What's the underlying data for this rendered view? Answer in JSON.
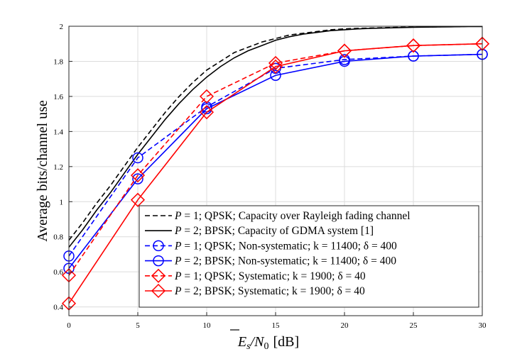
{
  "chart_data": {
    "type": "line",
    "xlabel_main": "E",
    "xlabel_sub": "s",
    "xlabel_mid": "/N",
    "xlabel_sub2": "0",
    "xlabel_unit": "[dB]",
    "ylabel": "Average bits/channel use",
    "xlim": [
      0,
      30
    ],
    "ylim": [
      0.35,
      2.0
    ],
    "xticks": [
      0,
      5,
      10,
      15,
      20,
      25,
      30
    ],
    "yticks": [
      0.4,
      0.6,
      0.8,
      1.0,
      1.2,
      1.4,
      1.6,
      1.8,
      2.0
    ],
    "ytick_labels": [
      "0.4",
      "0.6",
      "0.8",
      "1",
      "1.2",
      "1.4",
      "1.6",
      "1.8",
      "2"
    ],
    "grid": true,
    "legend_position": "bottom-right",
    "series": [
      {
        "name_prefix": "P",
        "name": " = 1; QPSK; Capacity over Rayleigh fading channel",
        "color": "#000000",
        "dash": "dashed",
        "marker": "none",
        "x": [
          0,
          1,
          2,
          3,
          4,
          5,
          6,
          7,
          8,
          9,
          10,
          11,
          12,
          13,
          14,
          15,
          16,
          17,
          18,
          19,
          20,
          21,
          22,
          23,
          24,
          25,
          26,
          27,
          28,
          29,
          30
        ],
        "y": [
          0.78,
          0.88,
          0.99,
          1.09,
          1.2,
          1.31,
          1.41,
          1.51,
          1.6,
          1.68,
          1.75,
          1.8,
          1.85,
          1.88,
          1.91,
          1.93,
          1.95,
          1.96,
          1.97,
          1.98,
          1.985,
          1.988,
          1.99,
          1.992,
          1.994,
          1.995,
          1.996,
          1.997,
          1.998,
          1.999,
          1.999
        ]
      },
      {
        "name_prefix": "P",
        "name": " = 2; BPSK; Capacity of GDMA system [1]",
        "color": "#000000",
        "dash": "solid",
        "marker": "none",
        "x": [
          0,
          1,
          2,
          3,
          4,
          5,
          6,
          7,
          8,
          9,
          10,
          11,
          12,
          13,
          14,
          15,
          16,
          17,
          18,
          19,
          20,
          21,
          22,
          23,
          24,
          25,
          26,
          27,
          28,
          29,
          30
        ],
        "y": [
          0.74,
          0.84,
          0.95,
          1.05,
          1.16,
          1.27,
          1.37,
          1.47,
          1.56,
          1.64,
          1.71,
          1.77,
          1.82,
          1.86,
          1.89,
          1.92,
          1.94,
          1.955,
          1.965,
          1.975,
          1.98,
          1.985,
          1.988,
          1.99,
          1.992,
          1.994,
          1.995,
          1.996,
          1.997,
          1.998,
          1.998
        ]
      },
      {
        "name_prefix": "P",
        "name": " = 1; QPSK; Non-systematic; k = 11400; δ = 400",
        "color": "#0000ff",
        "dash": "dashed",
        "marker": "circle",
        "x": [
          0,
          5,
          10,
          15,
          20,
          25,
          30
        ],
        "y": [
          0.69,
          1.25,
          1.54,
          1.76,
          1.81,
          1.83,
          1.84
        ]
      },
      {
        "name_prefix": "P",
        "name": " = 2; BPSK; Non-systematic; k = 11400; δ = 400",
        "color": "#0000ff",
        "dash": "solid",
        "marker": "circle",
        "x": [
          0,
          5,
          10,
          15,
          20,
          25,
          30
        ],
        "y": [
          0.62,
          1.13,
          1.53,
          1.72,
          1.8,
          1.83,
          1.84
        ]
      },
      {
        "name_prefix": "P",
        "name": " = 1; QPSK; Systematic; k = 1900; δ = 40",
        "color": "#ff0000",
        "dash": "dashed",
        "marker": "diamond",
        "x": [
          0,
          5,
          10,
          15,
          20,
          25,
          30
        ],
        "y": [
          0.58,
          1.15,
          1.6,
          1.79,
          1.86,
          1.89,
          1.9
        ]
      },
      {
        "name_prefix": "P",
        "name": " = 2; BPSK; Systematic; k = 1900; δ = 40",
        "color": "#ff0000",
        "dash": "solid",
        "marker": "diamond",
        "x": [
          0,
          5,
          10,
          15,
          20,
          25,
          30
        ],
        "y": [
          0.42,
          1.01,
          1.51,
          1.77,
          1.86,
          1.89,
          1.9
        ]
      }
    ]
  }
}
